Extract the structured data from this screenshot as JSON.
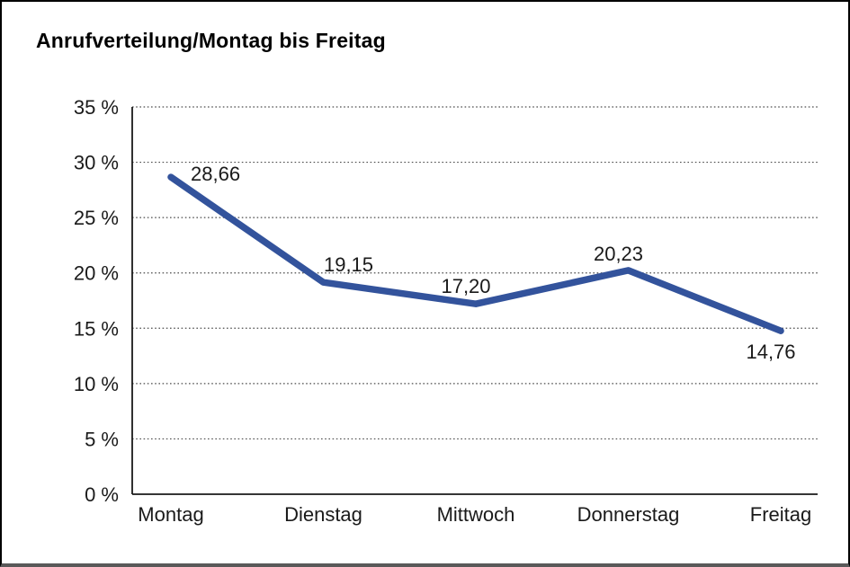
{
  "page": {
    "title": "Anrufverteilung/Montag bis Freitag"
  },
  "colors": {
    "line": "#33539C",
    "text": "#1a1a1a",
    "grid": "#4d4d4d",
    "axis": "#1a1a1a",
    "frame_border": "#000000",
    "frame_bottom": "#595959",
    "background": "#ffffff"
  },
  "chart_data": {
    "type": "line",
    "title": "Anrufverteilung/Montag bis Freitag",
    "categories": [
      "Montag",
      "Dienstag",
      "Mittwoch",
      "Donnerstag",
      "Freitag"
    ],
    "values": [
      28.66,
      19.15,
      17.2,
      20.23,
      14.76
    ],
    "value_labels": [
      "28,66",
      "19,15",
      "17,20",
      "20,23",
      "14,76"
    ],
    "yticks": [
      0,
      5,
      10,
      15,
      20,
      25,
      30,
      35
    ],
    "ytick_labels": [
      "0 %",
      "5 %",
      "10 %",
      "15 %",
      "20 %",
      "25 %",
      "30 %",
      "35 %"
    ],
    "ylim": [
      0,
      35
    ],
    "xlabel": "",
    "ylabel": "",
    "grid": "dotted-horizontal",
    "legend": "none"
  }
}
